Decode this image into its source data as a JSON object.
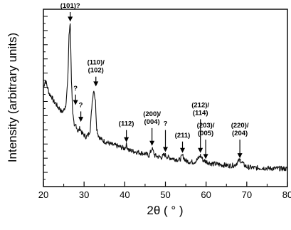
{
  "chart_data": {
    "type": "line",
    "title": "",
    "xlabel": "2θ ( ° )",
    "ylabel": "Intensity (arbitrary units)",
    "xlim": [
      20,
      80
    ],
    "xticks": [
      "20",
      "30",
      "40",
      "50",
      "60",
      "70",
      "80"
    ],
    "grid": false,
    "line_color": "#111111",
    "series": [
      {
        "x": [
          20,
          20.5,
          21,
          21.5,
          22,
          22.5,
          23,
          23.5,
          24,
          24.5,
          25,
          25.5,
          26,
          26.3,
          26.6,
          26.9,
          27.2,
          27.6,
          28,
          28.5,
          29,
          29.5,
          30,
          30.5,
          31,
          31.5,
          32,
          32.4,
          32.8,
          33.1,
          33.5,
          34,
          35,
          36,
          37,
          38,
          39,
          40,
          40.4,
          41,
          42,
          43,
          44,
          45,
          46,
          46.7,
          47.4,
          48,
          49,
          49.8,
          50.6,
          51.5,
          52.5,
          53.5,
          54.2,
          55,
          56,
          57,
          57.8,
          58.6,
          59.3,
          60.1,
          61,
          62,
          63,
          64,
          65,
          66,
          67,
          67.8,
          68.4,
          69.2,
          70,
          72,
          74,
          76,
          78,
          80
        ],
        "y": [
          0.56,
          0.6,
          0.56,
          0.52,
          0.51,
          0.48,
          0.47,
          0.45,
          0.44,
          0.42,
          0.43,
          0.46,
          0.6,
          0.855,
          0.92,
          0.6,
          0.42,
          0.33,
          0.35,
          0.31,
          0.33,
          0.3,
          0.29,
          0.28,
          0.29,
          0.32,
          0.48,
          0.55,
          0.48,
          0.33,
          0.29,
          0.27,
          0.255,
          0.245,
          0.235,
          0.23,
          0.222,
          0.215,
          0.235,
          0.205,
          0.2,
          0.195,
          0.19,
          0.185,
          0.175,
          0.215,
          0.175,
          0.17,
          0.165,
          0.18,
          0.165,
          0.16,
          0.155,
          0.15,
          0.175,
          0.145,
          0.14,
          0.138,
          0.15,
          0.175,
          0.148,
          0.14,
          0.132,
          0.128,
          0.125,
          0.122,
          0.12,
          0.118,
          0.12,
          0.14,
          0.15,
          0.125,
          0.11,
          0.105,
          0.105,
          0.102,
          0.102,
          0.1
        ]
      }
    ],
    "annotations": [
      {
        "lines": [
          "(101)?"
        ],
        "x": 26.6,
        "tip_y": 0.93,
        "label_y": 1.0
      },
      {
        "lines": [
          "?"
        ],
        "x": 27.9,
        "tip_y": 0.46,
        "label_y": 0.535
      },
      {
        "lines": [
          "?"
        ],
        "x": 29.2,
        "tip_y": 0.365,
        "label_y": 0.44
      },
      {
        "lines": [
          "(110)/",
          "(102)"
        ],
        "x": 32.9,
        "tip_y": 0.565,
        "label_y": 0.68
      },
      {
        "lines": [
          "(112)"
        ],
        "x": 40.4,
        "tip_y": 0.25,
        "label_y": 0.335
      },
      {
        "lines": [
          "(200)/",
          "(004)"
        ],
        "x": 46.7,
        "tip_y": 0.23,
        "label_y": 0.39
      },
      {
        "lines": [
          "?"
        ],
        "x": 50.0,
        "tip_y": 0.195,
        "label_y": 0.335
      },
      {
        "lines": [
          "(211)"
        ],
        "x": 54.2,
        "tip_y": 0.19,
        "label_y": 0.27
      },
      {
        "lines": [
          "(212)/",
          "(114)"
        ],
        "x": 58.6,
        "tip_y": 0.19,
        "label_y": 0.44
      },
      {
        "lines": [
          "(203)/",
          "(005)"
        ],
        "x": 59.9,
        "tip_y": 0.155,
        "label_y": 0.325
      },
      {
        "lines": [
          "(220)/",
          "(204)"
        ],
        "x": 68.3,
        "tip_y": 0.16,
        "label_y": 0.325
      }
    ]
  }
}
